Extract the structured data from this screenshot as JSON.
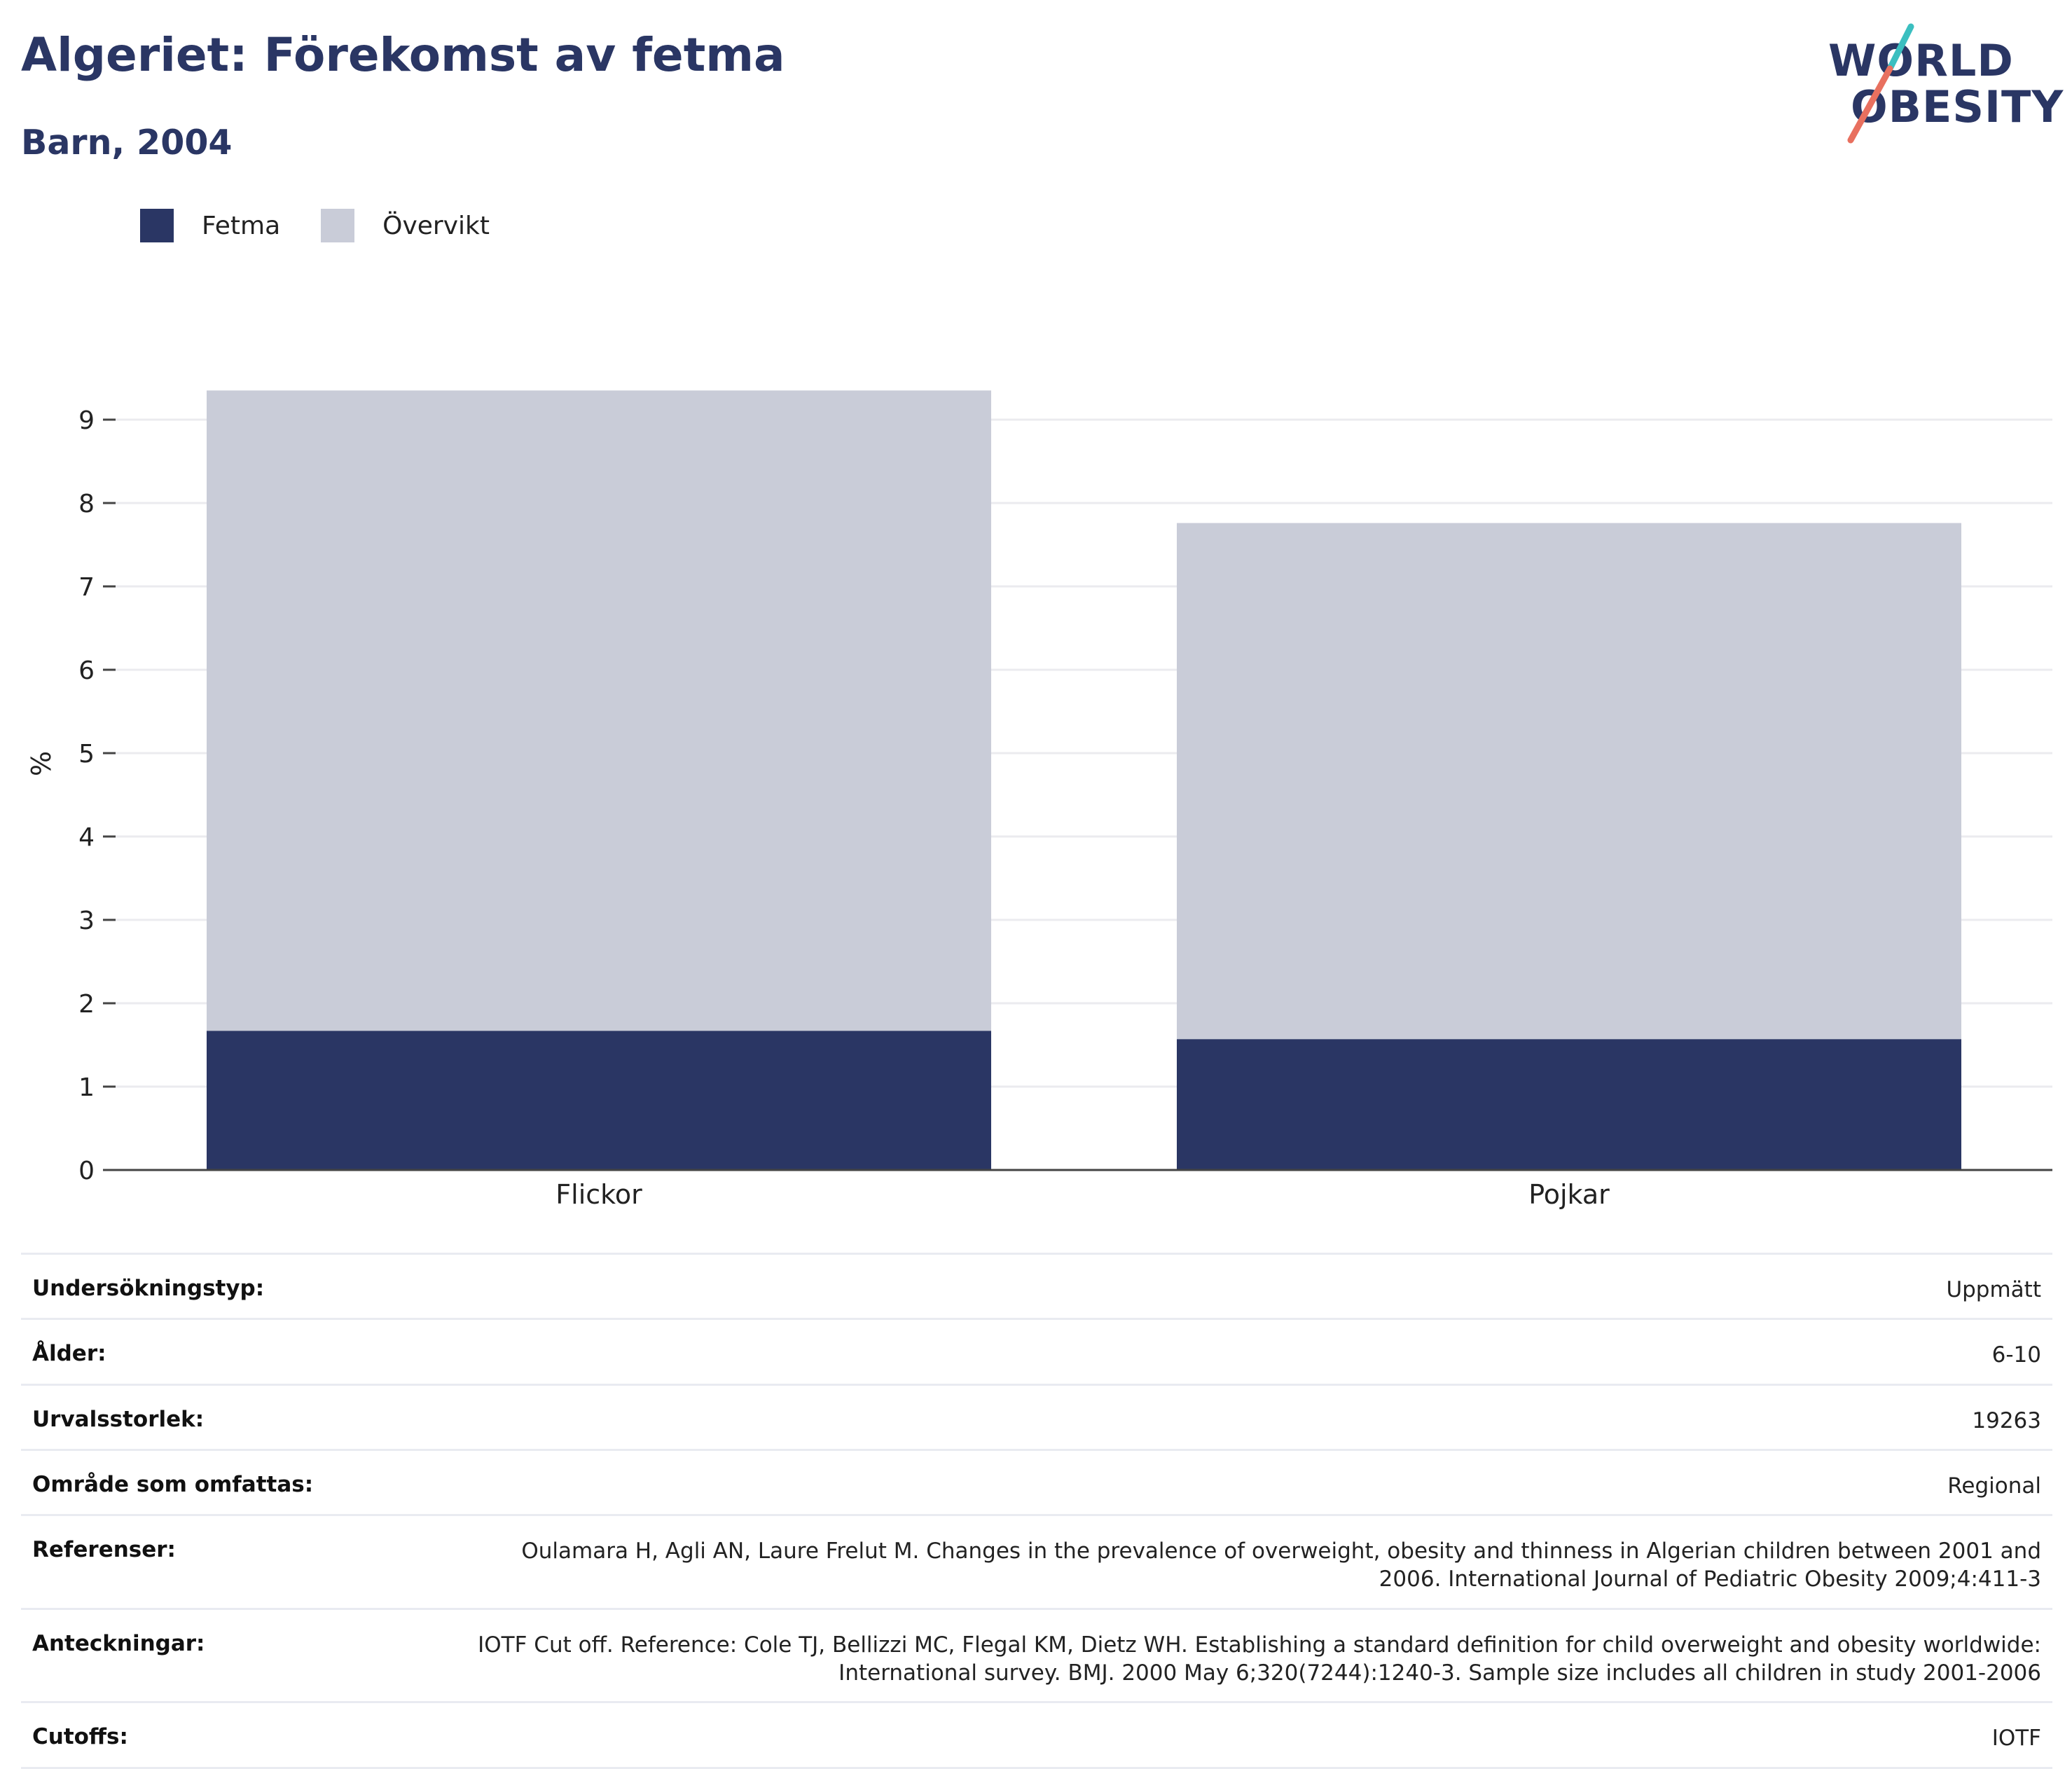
{
  "header": {
    "title": "Algeriet: Förekomst av fetma",
    "subtitle": "Barn, 2004"
  },
  "logo": {
    "line1": "WORLD",
    "line2": "OBESITY",
    "accent_teal": "#3bbfc0",
    "accent_coral": "#e8705f",
    "color": "#2a3664"
  },
  "legend": [
    {
      "label": "Fetma",
      "color": "#2a3664"
    },
    {
      "label": "Övervikt",
      "color": "#c9ccd8"
    }
  ],
  "chart_data": {
    "type": "bar",
    "stacked": true,
    "categories": [
      "Flickor",
      "Pojkar"
    ],
    "series": [
      {
        "name": "Fetma",
        "color": "#2a3664",
        "values": [
          1.67,
          1.57
        ]
      },
      {
        "name": "Övervikt",
        "color": "#c9ccd8",
        "values": [
          7.68,
          6.19
        ]
      }
    ],
    "ylabel": "%",
    "ylim": [
      0,
      9.6
    ],
    "yticks": [
      0,
      1,
      2,
      3,
      4,
      5,
      6,
      7,
      8,
      9
    ],
    "grid": true,
    "legend_position": "top-left"
  },
  "info": [
    {
      "key": "Undersökningstyp:",
      "value": "Uppmätt"
    },
    {
      "key": "Ålder:",
      "value": "6-10"
    },
    {
      "key": "Urvalsstorlek:",
      "value": "19263"
    },
    {
      "key": "Område som omfattas:",
      "value": "Regional"
    },
    {
      "key": "Referenser:",
      "value": "Oulamara H, Agli AN, Laure Frelut M. Changes in the prevalence of overweight, obesity and thinness in Algerian children between 2001 and 2006. International Journal of Pediatric Obesity 2009;4:411-3"
    },
    {
      "key": "Anteckningar:",
      "value": "IOTF Cut off. Reference: Cole TJ, Bellizzi MC, Flegal KM, Dietz WH. Establishing a standard definition for child overweight and obesity worldwide: International survey. BMJ. 2000 May 6;320(7244):1240-3. Sample size includes all children in study 2001-2006"
    },
    {
      "key": "Cutoffs:",
      "value": "IOTF"
    }
  ]
}
